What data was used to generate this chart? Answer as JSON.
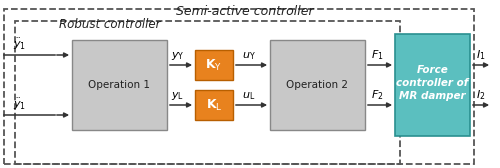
{
  "title": "Semi-active controller",
  "subtitle": "Robust controller",
  "bg_color": "#ffffff",
  "box_gray": "#c8c8c8",
  "box_orange": "#e8821e",
  "box_teal": "#5bbfbf",
  "box_gray_edge": "#888888",
  "box_orange_edge": "#b85f00",
  "box_teal_edge": "#2a9090",
  "dashed_outer_color": "#555555",
  "dashed_inner_color": "#555555",
  "arrow_color": "#333333",
  "text_color": "#222222",
  "label_input1": "$\\ddot{y}_1$",
  "label_input2": "$\\ddot{y}_1$",
  "label_op1": "Operation 1",
  "label_yY": "$y_\\mathrm{Y}$",
  "label_yL": "$y_\\mathrm{L}$",
  "label_KY": "$\\mathbf{K}_\\mathrm{Y}$",
  "label_KL": "$\\mathbf{K}_\\mathrm{L}$",
  "label_uY": "$u_\\mathrm{Y}$",
  "label_uL": "$u_\\mathrm{L}$",
  "label_op2": "Operation 2",
  "label_F1": "$F_1$",
  "label_F2": "$F_2$",
  "label_force": "Force\ncontroller of\nMR damper",
  "label_I1": "$I_1$",
  "label_I2": "$I_2$"
}
